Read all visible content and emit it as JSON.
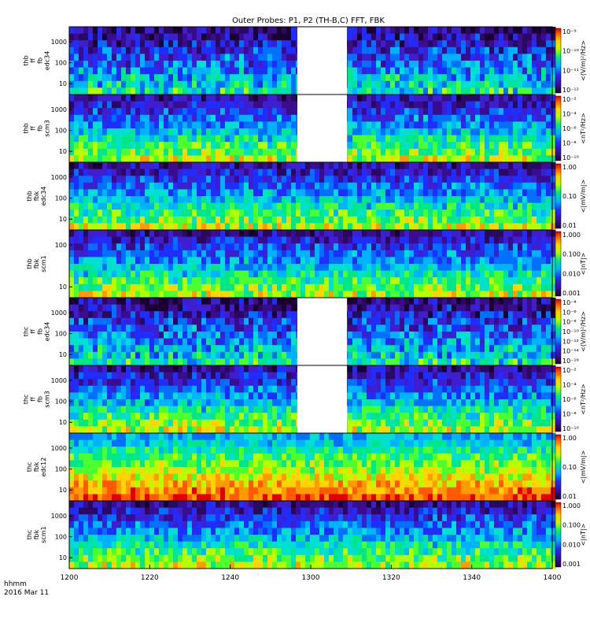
{
  "chart_data": {
    "type": "heatmap",
    "title": "Outer Probes: P1, P2 (TH-B,C) FFT, FBK",
    "x_ticks": [
      "1200",
      "1220",
      "1240",
      "1300",
      "1320",
      "1340",
      "1400"
    ],
    "corner_label": [
      "hhmm",
      "2016 Mar 11"
    ],
    "panels": [
      {
        "probe": "thb",
        "ylabel": [
          "thb",
          "ff",
          "fb",
          "edc34"
        ],
        "yticks": [
          "1000",
          "100",
          "10"
        ],
        "zlabel": "<(V/m)²/Hz>",
        "zticks": [
          "10⁻⁹",
          "10⁻¹⁰",
          "10⁻¹¹",
          "10⁻¹²"
        ],
        "gap": true
      },
      {
        "probe": "thb",
        "ylabel": [
          "thb",
          "ff",
          "fb",
          "scm3"
        ],
        "yticks": [
          "1000",
          "100",
          "10"
        ],
        "zlabel": "<nT²/Hz>",
        "zticks": [
          "10⁻²",
          "10⁻⁴",
          "10⁻⁶",
          "10⁻⁸",
          "10⁻¹⁰"
        ],
        "gap": true
      },
      {
        "probe": "thb",
        "ylabel": [
          "thb",
          "fbk",
          "edc34"
        ],
        "yticks": [
          "1000",
          "100",
          "10"
        ],
        "zlabel": "<|mV/m|>",
        "zticks": [
          "1.00",
          "0.10",
          "0.01"
        ],
        "gap": false
      },
      {
        "probe": "thb",
        "ylabel": [
          "thb",
          "fbk",
          "scm1"
        ],
        "yticks": [
          "100",
          "10"
        ],
        "zlabel": "<|nT|>",
        "zticks": [
          "1.000",
          "0.100",
          "0.010",
          "0.001"
        ],
        "gap": false
      },
      {
        "probe": "thc",
        "ylabel": [
          "thc",
          "ff",
          "fb",
          "edc34"
        ],
        "yticks": [
          "1000",
          "100",
          "10"
        ],
        "zlabel": "<(V/m)²/Hz>",
        "zticks": [
          "10⁻⁴",
          "10⁻⁶",
          "10⁻⁸",
          "10⁻¹⁰",
          "10⁻¹²",
          "10⁻¹⁴",
          "10⁻¹⁶"
        ],
        "gap": true
      },
      {
        "probe": "thc",
        "ylabel": [
          "thc",
          "ff",
          "fb",
          "scm3"
        ],
        "yticks": [
          "1000",
          "100",
          "10"
        ],
        "zlabel": "<nT²/Hz>",
        "zticks": [
          "10⁻²",
          "10⁻⁴",
          "10⁻⁶",
          "10⁻⁸",
          "10⁻¹⁰"
        ],
        "gap": true
      },
      {
        "probe": "thc",
        "ylabel": [
          "thc",
          "fbk",
          "edc12"
        ],
        "yticks": [
          "1000",
          "100",
          "10"
        ],
        "zlabel": "<|mV/m|>",
        "zticks": [
          "1.00",
          "0.10",
          "0.01"
        ],
        "gap": false
      },
      {
        "probe": "thc",
        "ylabel": [
          "thc",
          "fbk",
          "scm1"
        ],
        "yticks": [
          "1000",
          "100",
          "10"
        ],
        "zlabel": "<|nT|>",
        "zticks": [
          "1.000",
          "0.100",
          "0.010",
          "0.001"
        ],
        "gap": false
      }
    ]
  }
}
